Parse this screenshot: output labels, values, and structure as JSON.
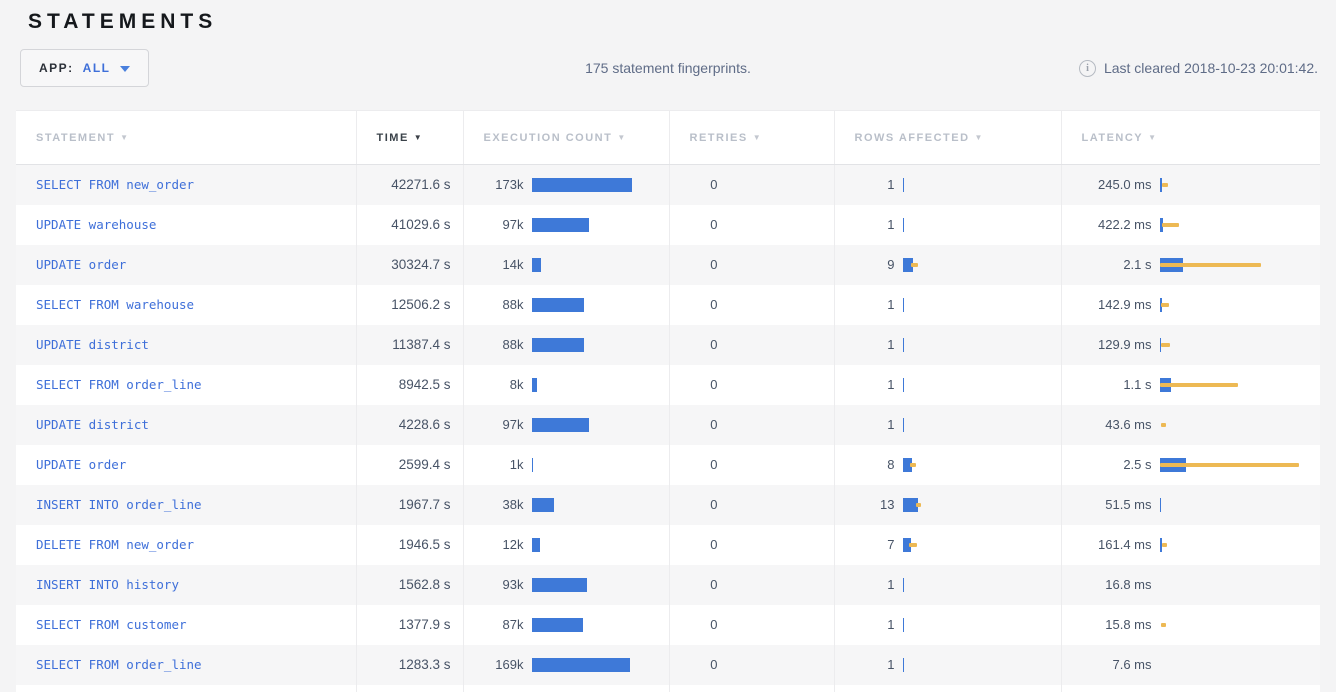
{
  "page": {
    "title": "STATEMENTS"
  },
  "toolbar": {
    "app_label": "APP:",
    "app_value": "ALL",
    "summary": "175 statement fingerprints.",
    "info_icon": "i",
    "last_cleared": "Last cleared 2018-10-23 20:01:42."
  },
  "table": {
    "columns": [
      {
        "label": "STATEMENT",
        "sorted": false
      },
      {
        "label": "TIME",
        "sorted": true
      },
      {
        "label": "EXECUTION COUNT",
        "sorted": false
      },
      {
        "label": "RETRIES",
        "sorted": false
      },
      {
        "label": "ROWS AFFECTED",
        "sorted": false
      },
      {
        "label": "LATENCY",
        "sorted": false
      }
    ],
    "sort_arrow": "▼",
    "rows": [
      {
        "statement": "SELECT FROM new_order",
        "time": "42271.6 s",
        "count": "173k",
        "count_bar": 100,
        "retries": "0",
        "rows": "1",
        "rows_bar": 1.5,
        "rows_dev_start": 0,
        "rows_dev_w": 0,
        "latency": "245.0 ms",
        "lat_bar": 2,
        "lat_dev_start": 2,
        "lat_dev_w": 6
      },
      {
        "statement": "UPDATE warehouse",
        "time": "41029.6 s",
        "count": "97k",
        "count_bar": 57,
        "retries": "0",
        "rows": "1",
        "rows_bar": 1.5,
        "rows_dev_start": 0,
        "rows_dev_w": 0,
        "latency": "422.2 ms",
        "lat_bar": 3,
        "lat_dev_start": 2,
        "lat_dev_w": 17
      },
      {
        "statement": "UPDATE order",
        "time": "30324.7 s",
        "count": "14k",
        "count_bar": 9,
        "retries": "0",
        "rows": "9",
        "rows_bar": 10,
        "rows_dev_start": 8,
        "rows_dev_w": 7,
        "latency": "2.1 s",
        "lat_bar": 23,
        "lat_dev_start": 0,
        "lat_dev_w": 101
      },
      {
        "statement": "SELECT FROM warehouse",
        "time": "12506.2 s",
        "count": "88k",
        "count_bar": 52,
        "retries": "0",
        "rows": "1",
        "rows_bar": 1.5,
        "rows_dev_start": 0,
        "rows_dev_w": 0,
        "latency": "142.9 ms",
        "lat_bar": 2,
        "lat_dev_start": 1,
        "lat_dev_w": 8
      },
      {
        "statement": "UPDATE district",
        "time": "11387.4 s",
        "count": "88k",
        "count_bar": 52,
        "retries": "0",
        "rows": "1",
        "rows_bar": 1.5,
        "rows_dev_start": 0,
        "rows_dev_w": 0,
        "latency": "129.9 ms",
        "lat_bar": 1.5,
        "lat_dev_start": 1,
        "lat_dev_w": 9
      },
      {
        "statement": "SELECT FROM order_line",
        "time": "8942.5 s",
        "count": "8k",
        "count_bar": 5,
        "retries": "0",
        "rows": "1",
        "rows_bar": 1.5,
        "rows_dev_start": 0,
        "rows_dev_w": 0,
        "latency": "1.1 s",
        "lat_bar": 11,
        "lat_dev_start": 0,
        "lat_dev_w": 78
      },
      {
        "statement": "UPDATE district",
        "time": "4228.6 s",
        "count": "97k",
        "count_bar": 57,
        "retries": "0",
        "rows": "1",
        "rows_bar": 1.5,
        "rows_dev_start": 0,
        "rows_dev_w": 0,
        "latency": "43.6 ms",
        "lat_bar": 0,
        "lat_dev_start": 1,
        "lat_dev_w": 5
      },
      {
        "statement": "UPDATE order",
        "time": "2599.4 s",
        "count": "1k",
        "count_bar": 1.5,
        "retries": "0",
        "rows": "8",
        "rows_bar": 9,
        "rows_dev_start": 7,
        "rows_dev_w": 6,
        "latency": "2.5 s",
        "lat_bar": 26,
        "lat_dev_start": 0,
        "lat_dev_w": 139
      },
      {
        "statement": "INSERT INTO order_line",
        "time": "1967.7 s",
        "count": "38k",
        "count_bar": 22,
        "retries": "0",
        "rows": "13",
        "rows_bar": 15,
        "rows_dev_start": 13,
        "rows_dev_w": 5,
        "latency": "51.5 ms",
        "lat_bar": 1.5,
        "lat_dev_start": 0,
        "lat_dev_w": 0
      },
      {
        "statement": "DELETE FROM new_order",
        "time": "1946.5 s",
        "count": "12k",
        "count_bar": 8,
        "retries": "0",
        "rows": "7",
        "rows_bar": 8,
        "rows_dev_start": 6,
        "rows_dev_w": 8,
        "latency": "161.4 ms",
        "lat_bar": 2,
        "lat_dev_start": 2,
        "lat_dev_w": 5
      },
      {
        "statement": "INSERT INTO history",
        "time": "1562.8 s",
        "count": "93k",
        "count_bar": 55,
        "retries": "0",
        "rows": "1",
        "rows_bar": 1.5,
        "rows_dev_start": 0,
        "rows_dev_w": 0,
        "latency": "16.8 ms",
        "lat_bar": 0,
        "lat_dev_start": 0,
        "lat_dev_w": 0
      },
      {
        "statement": "SELECT FROM customer",
        "time": "1377.9 s",
        "count": "87k",
        "count_bar": 51,
        "retries": "0",
        "rows": "1",
        "rows_bar": 1.5,
        "rows_dev_start": 0,
        "rows_dev_w": 0,
        "latency": "15.8 ms",
        "lat_bar": 0,
        "lat_dev_start": 1,
        "lat_dev_w": 5
      },
      {
        "statement": "SELECT FROM order_line",
        "time": "1283.3 s",
        "count": "169k",
        "count_bar": 98,
        "retries": "0",
        "rows": "1",
        "rows_bar": 1.5,
        "rows_dev_start": 0,
        "rows_dev_w": 0,
        "latency": "7.6 ms",
        "lat_bar": 0,
        "lat_dev_start": 0,
        "lat_dev_w": 0
      }
    ]
  },
  "colors": {
    "bar_blue": "#3e79d8",
    "bar_dev_orange": "#edb954",
    "statement_link_blue": "#3e6fd9"
  }
}
